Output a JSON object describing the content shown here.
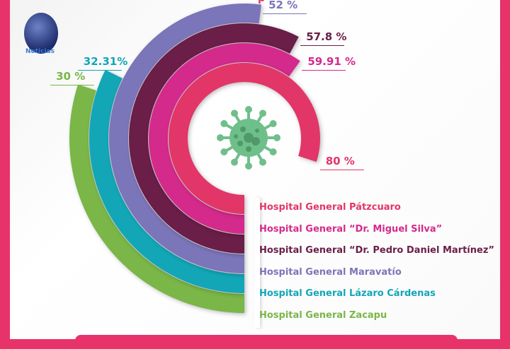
{
  "logo": {
    "text": "Noticias"
  },
  "title_fragment": "p",
  "chart_data": {
    "type": "radial-bar",
    "title": "",
    "unit": "%",
    "series": [
      {
        "name": "Hospital General Pátzcuaro",
        "value": 80,
        "label": "80 %",
        "color": "#e23668"
      },
      {
        "name": "Hospital General “Dr. Miguel Silva”",
        "value": 59.91,
        "label": "59.91 %",
        "color": "#d42a8b"
      },
      {
        "name": "Hospital General “Dr. Pedro Daniel Martínez”",
        "value": 57.8,
        "label": "57.8 %",
        "color": "#6a1e48"
      },
      {
        "name": "Hospital General Maravatío",
        "value": 52,
        "label": "52 %",
        "color": "#7b75b9"
      },
      {
        "name": "Hospital General Lázaro Cárdenas",
        "value": 32.31,
        "label": "32.31%",
        "color": "#12a6b7"
      },
      {
        "name": "Hospital General Zacapu",
        "value": 30,
        "label": "30 %",
        "color": "#7ab648"
      }
    ],
    "range": [
      0,
      100
    ]
  },
  "colors": {
    "frame": "#e8336a",
    "virus": "#6fbf8a"
  }
}
